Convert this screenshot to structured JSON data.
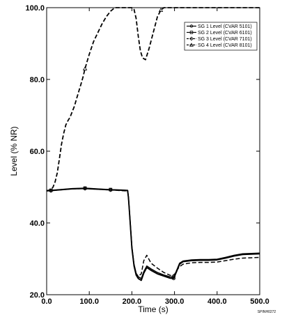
{
  "figure_id": "SPINH0272",
  "chart_data": {
    "type": "line",
    "xlabel": "Time (s)",
    "ylabel": "Level (% NR)",
    "xlim": [
      0,
      500
    ],
    "ylim": [
      20,
      100
    ],
    "xticks": [
      0,
      100,
      200,
      300,
      400,
      500
    ],
    "xtick_labels": [
      "0.0",
      "100.0",
      "200.0",
      "300.0",
      "400.0",
      "500.0"
    ],
    "yticks": [
      20,
      40,
      60,
      80,
      100
    ],
    "ytick_labels": [
      "20.0",
      "40.0",
      "60.0",
      "80.0",
      "100.0"
    ],
    "grid": false,
    "legend_position": "top-right",
    "series": [
      {
        "name": "SG 1 Level (CVAR 5101)",
        "style": "solid",
        "marker": "circle",
        "points": [
          [
            0,
            49
          ],
          [
            10,
            49
          ],
          [
            30,
            49.2
          ],
          [
            60,
            49.5
          ],
          [
            90,
            49.6
          ],
          [
            120,
            49.4
          ],
          [
            150,
            49.2
          ],
          [
            175,
            49.1
          ],
          [
            190,
            49
          ],
          [
            192,
            47
          ],
          [
            196,
            40
          ],
          [
            200,
            33
          ],
          [
            205,
            28
          ],
          [
            210,
            25.5
          ],
          [
            215,
            24.5
          ],
          [
            222,
            24
          ],
          [
            228,
            26
          ],
          [
            235,
            27.6
          ],
          [
            245,
            26.8
          ],
          [
            260,
            25.8
          ],
          [
            275,
            25.2
          ],
          [
            290,
            24.6
          ],
          [
            298,
            24.5
          ],
          [
            305,
            26.5
          ],
          [
            312,
            28.5
          ],
          [
            320,
            29.2
          ],
          [
            340,
            29.5
          ],
          [
            360,
            29.6
          ],
          [
            380,
            29.6
          ],
          [
            400,
            29.7
          ],
          [
            420,
            30.2
          ],
          [
            440,
            30.8
          ],
          [
            460,
            31.2
          ],
          [
            480,
            31.3
          ],
          [
            500,
            31.4
          ]
        ]
      },
      {
        "name": "SG 2 Level (CVAR 6101)",
        "style": "solid",
        "marker": "square",
        "points": [
          [
            0,
            49
          ],
          [
            10,
            49.1
          ],
          [
            30,
            49.3
          ],
          [
            60,
            49.6
          ],
          [
            90,
            49.7
          ],
          [
            120,
            49.5
          ],
          [
            150,
            49.3
          ],
          [
            175,
            49.2
          ],
          [
            190,
            49.1
          ],
          [
            192,
            47.2
          ],
          [
            196,
            40.2
          ],
          [
            200,
            33.5
          ],
          [
            205,
            28.5
          ],
          [
            210,
            26
          ],
          [
            215,
            25
          ],
          [
            222,
            24.5
          ],
          [
            228,
            26.4
          ],
          [
            235,
            28
          ],
          [
            245,
            27.2
          ],
          [
            260,
            26.2
          ],
          [
            275,
            25.5
          ],
          [
            290,
            25
          ],
          [
            298,
            24.8
          ],
          [
            305,
            26.8
          ],
          [
            312,
            28.8
          ],
          [
            320,
            29.4
          ],
          [
            340,
            29.7
          ],
          [
            360,
            29.8
          ],
          [
            380,
            29.8
          ],
          [
            400,
            29.9
          ],
          [
            420,
            30.4
          ],
          [
            440,
            31
          ],
          [
            460,
            31.4
          ],
          [
            480,
            31.5
          ],
          [
            500,
            31.6
          ]
        ]
      },
      {
        "name": "SG 3 Level (CVAR 7101)",
        "style": "dashed",
        "marker": "diamond",
        "points": [
          [
            0,
            48.9
          ],
          [
            10,
            49
          ],
          [
            30,
            49.2
          ],
          [
            60,
            49.5
          ],
          [
            90,
            49.6
          ],
          [
            120,
            49.4
          ],
          [
            150,
            49.2
          ],
          [
            175,
            49
          ],
          [
            190,
            48.9
          ],
          [
            192,
            47
          ],
          [
            196,
            40
          ],
          [
            200,
            33.2
          ],
          [
            205,
            28.2
          ],
          [
            210,
            25.8
          ],
          [
            215,
            25.2
          ],
          [
            222,
            25.8
          ],
          [
            228,
            29.5
          ],
          [
            235,
            31
          ],
          [
            245,
            28.8
          ],
          [
            260,
            27.4
          ],
          [
            275,
            26.2
          ],
          [
            290,
            25.4
          ],
          [
            298,
            25.2
          ],
          [
            305,
            26.8
          ],
          [
            312,
            27.8
          ],
          [
            320,
            28.5
          ],
          [
            340,
            28.9
          ],
          [
            360,
            29
          ],
          [
            380,
            29
          ],
          [
            400,
            29.1
          ],
          [
            420,
            29.5
          ],
          [
            440,
            29.9
          ],
          [
            460,
            30.2
          ],
          [
            480,
            30.3
          ],
          [
            500,
            30.4
          ]
        ]
      },
      {
        "name": "SG 4 Level (CVAR 8101)",
        "style": "dashed",
        "marker": "triangle",
        "points": [
          [
            0,
            49
          ],
          [
            10,
            49.2
          ],
          [
            15,
            50
          ],
          [
            20,
            51.5
          ],
          [
            25,
            54
          ],
          [
            30,
            58
          ],
          [
            35,
            62
          ],
          [
            40,
            65
          ],
          [
            45,
            67.3
          ],
          [
            50,
            68.5
          ],
          [
            55,
            69.5
          ],
          [
            60,
            71
          ],
          [
            65,
            72.5
          ],
          [
            70,
            74.5
          ],
          [
            75,
            76.5
          ],
          [
            80,
            78.5
          ],
          [
            85,
            80.5
          ],
          [
            90,
            83
          ],
          [
            95,
            85
          ],
          [
            100,
            87
          ],
          [
            110,
            90.5
          ],
          [
            120,
            93
          ],
          [
            130,
            95.5
          ],
          [
            140,
            97.5
          ],
          [
            150,
            99
          ],
          [
            160,
            100
          ],
          [
            170,
            100
          ],
          [
            180,
            100
          ],
          [
            190,
            100
          ],
          [
            200,
            100
          ],
          [
            205,
            99.5
          ],
          [
            210,
            97
          ],
          [
            215,
            92
          ],
          [
            220,
            88
          ],
          [
            225,
            86
          ],
          [
            232,
            85.5
          ],
          [
            240,
            88.5
          ],
          [
            250,
            93
          ],
          [
            260,
            97.5
          ],
          [
            268,
            99.3
          ],
          [
            275,
            100
          ],
          [
            300,
            100
          ],
          [
            350,
            100
          ],
          [
            400,
            100
          ],
          [
            450,
            100
          ],
          [
            500,
            100
          ]
        ]
      }
    ]
  }
}
